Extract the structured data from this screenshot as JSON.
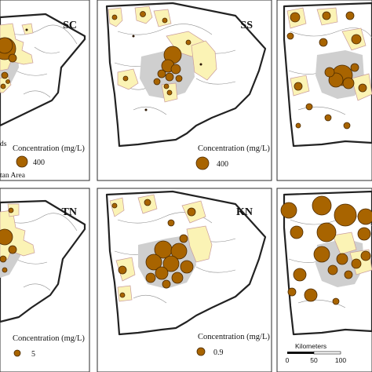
{
  "panels": [
    {
      "id": "sc",
      "label": "SC",
      "legend_value": "400"
    },
    {
      "id": "ss",
      "label": "SS",
      "legend_value": "400"
    },
    {
      "id": "p3",
      "label": "",
      "legend_value": ""
    },
    {
      "id": "tn",
      "label": "TN",
      "legend_value": "5"
    },
    {
      "id": "kn",
      "label": "KN",
      "legend_value": "0.9"
    },
    {
      "id": "p6",
      "label": "",
      "legend_value": ""
    }
  ],
  "legend": {
    "title": "Concentration (mg/L)",
    "partial_lines": [
      "ds",
      "tan Area"
    ]
  },
  "scale_bar": {
    "title": "Kilometers",
    "ticks": [
      "0",
      "50",
      "100"
    ]
  },
  "colors": {
    "symbol": "#a86400",
    "watershed_fill": "#fbf3b5",
    "metro_area": "#cfcfcf"
  }
}
